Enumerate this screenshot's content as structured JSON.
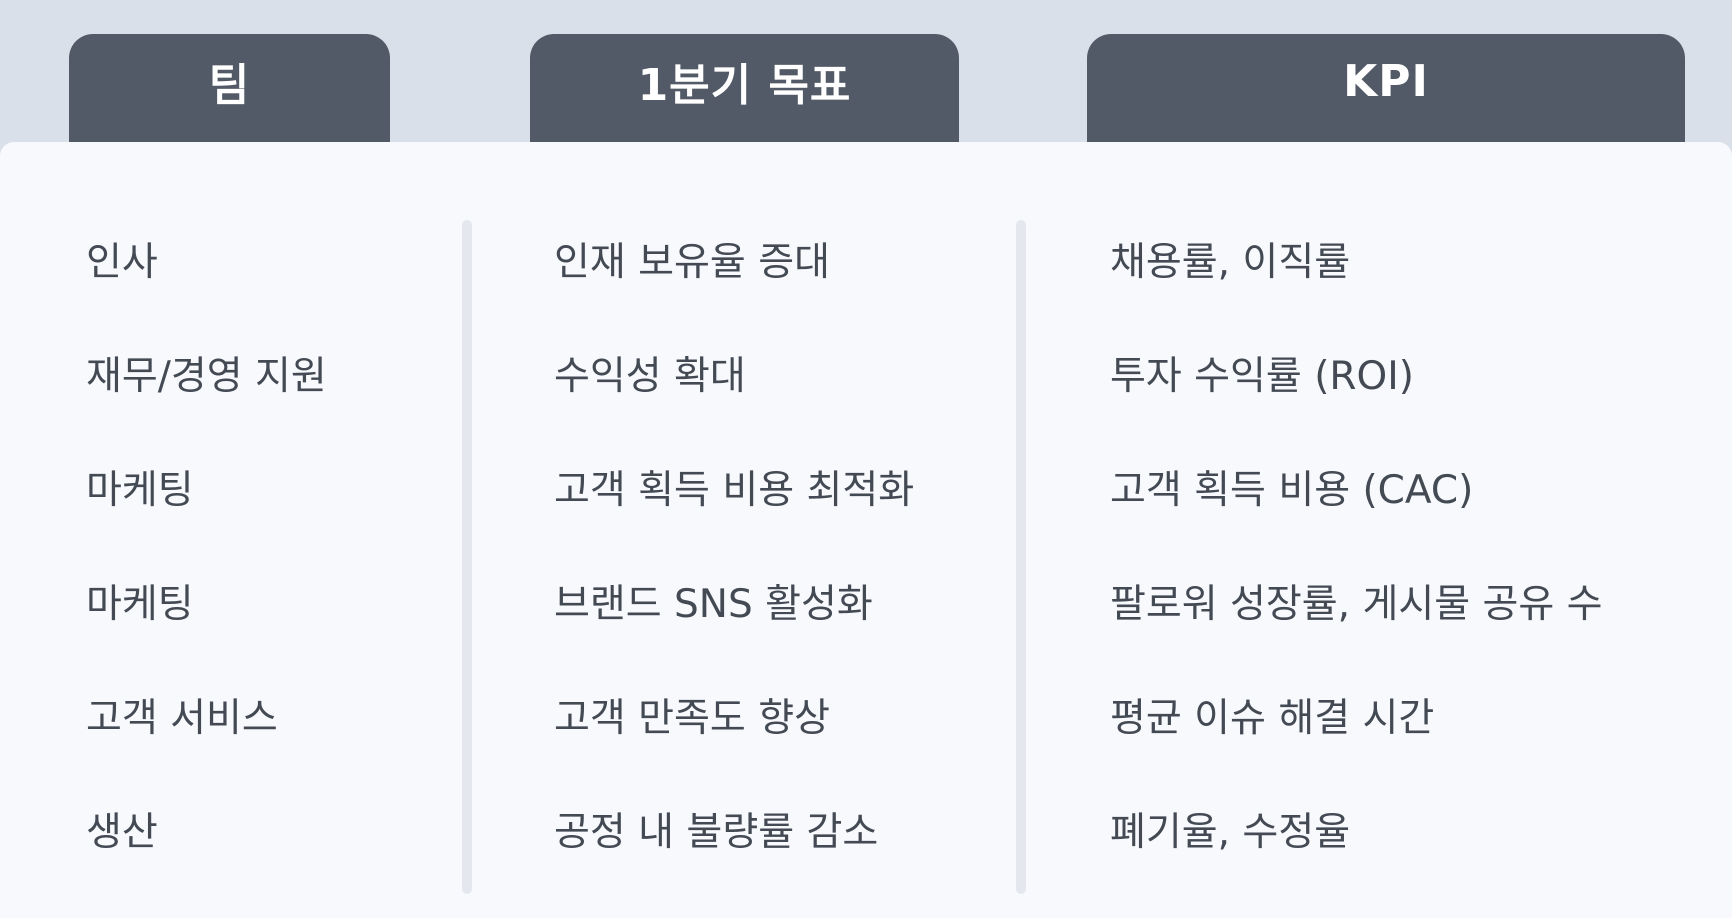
{
  "headers": {
    "team": "팀",
    "goal": "1분기 목표",
    "kpi": "KPI"
  },
  "rows": [
    {
      "team": "인사",
      "goal": "인재 보유율 증대",
      "kpi": "채용률, 이직률"
    },
    {
      "team": "재무/경영 지원",
      "goal": "수익성 확대",
      "kpi": "투자 수익률 (ROI)"
    },
    {
      "team": "마케팅",
      "goal": "고객 획득 비용 최적화",
      "kpi": "고객 획득 비용 (CAC)"
    },
    {
      "team": "마케팅",
      "goal": "브랜드 SNS 활성화",
      "kpi": "팔로워 성장률, 게시물 공유 수"
    },
    {
      "team": "고객 서비스",
      "goal": "고객 만족도 향상",
      "kpi": "평균 이슈 해결 시간"
    },
    {
      "team": "생산",
      "goal": "공정 내 불량률 감소",
      "kpi": "폐기율, 수정율"
    }
  ],
  "colors": {
    "background": "#d9e0ea",
    "header": "#535a67",
    "panel": "#f8f9fc",
    "text": "#434a54"
  }
}
